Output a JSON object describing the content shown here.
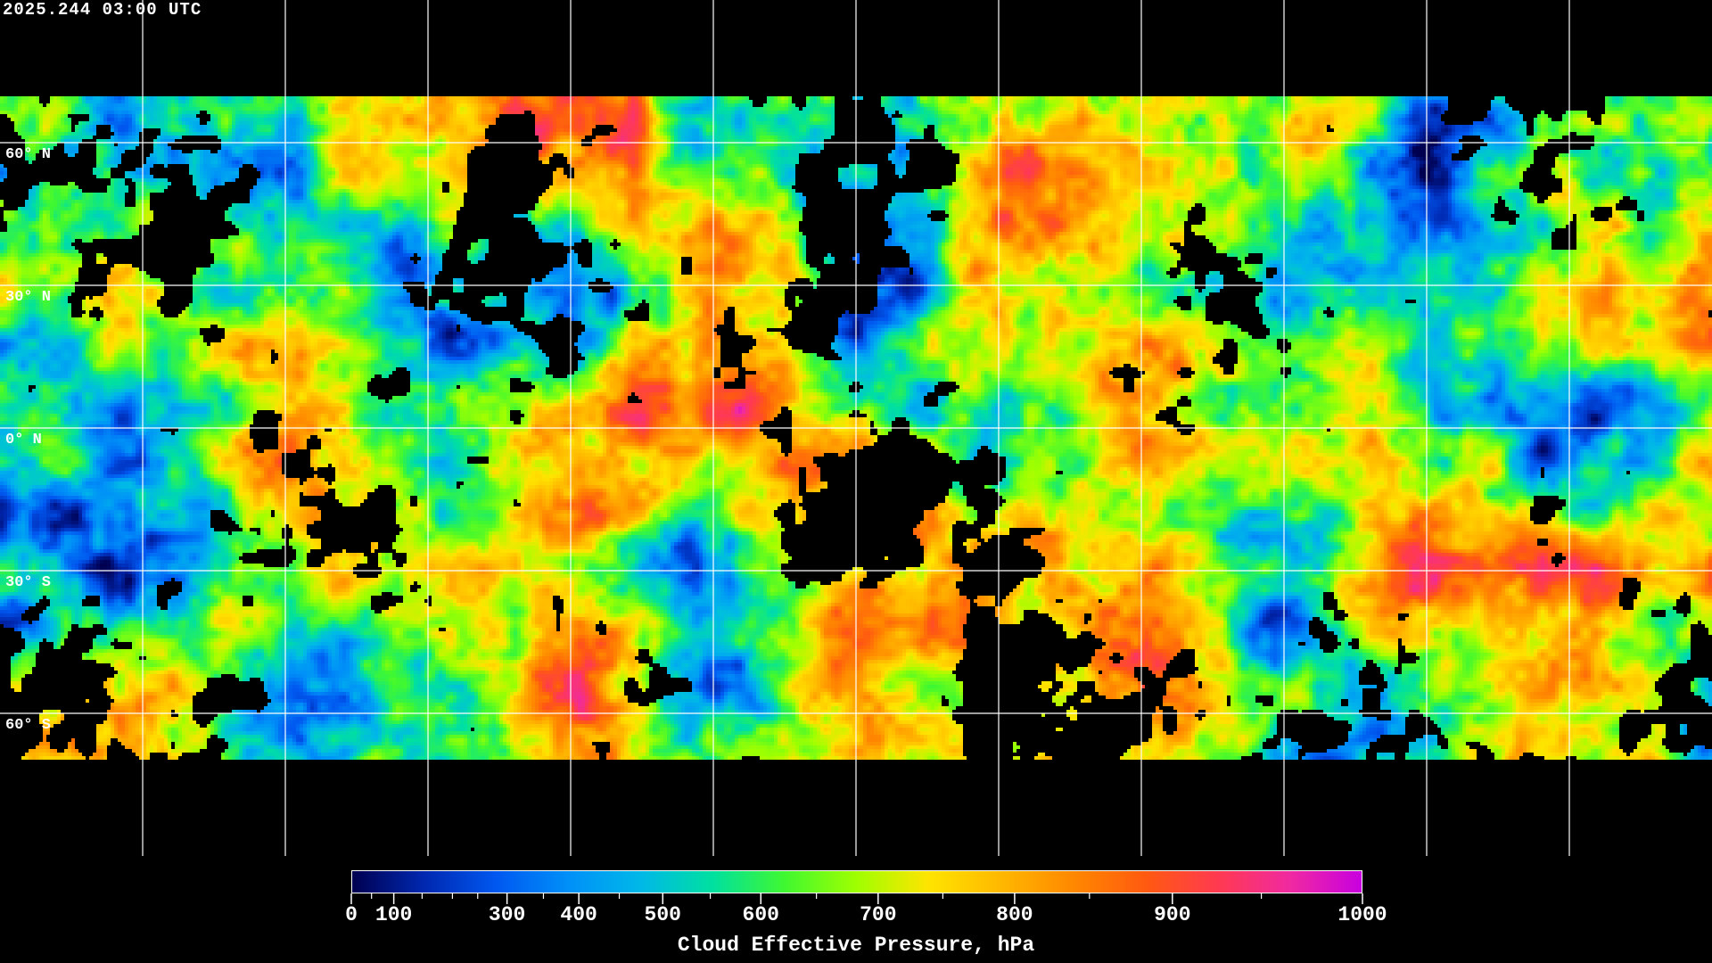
{
  "title": "2025.244 03:00 UTC",
  "map": {
    "projection": "equirectangular",
    "gridline_color": "#ffffff",
    "grid_spacing_deg": 30,
    "lat_labels": [
      "60° N",
      "30° N",
      "0° N",
      "30° S",
      "60° S"
    ],
    "lat_values": [
      60,
      30,
      0,
      -30,
      -60
    ]
  },
  "colorbar": {
    "title": "Cloud Effective Pressure, hPa",
    "range": [
      0,
      1000
    ],
    "ticks": [
      "0",
      "100",
      "300",
      "400",
      "500",
      "600",
      "700",
      "800",
      "900",
      "1000"
    ],
    "colors": [
      "#000050",
      "#0028b0",
      "#0058f0",
      "#0090f8",
      "#00b8e8",
      "#00e0a0",
      "#40f830",
      "#a0ff00",
      "#ffe400",
      "#ffb800",
      "#ff8800",
      "#ff5a10",
      "#ff3a50",
      "#f02aa0",
      "#c800e0"
    ]
  }
}
